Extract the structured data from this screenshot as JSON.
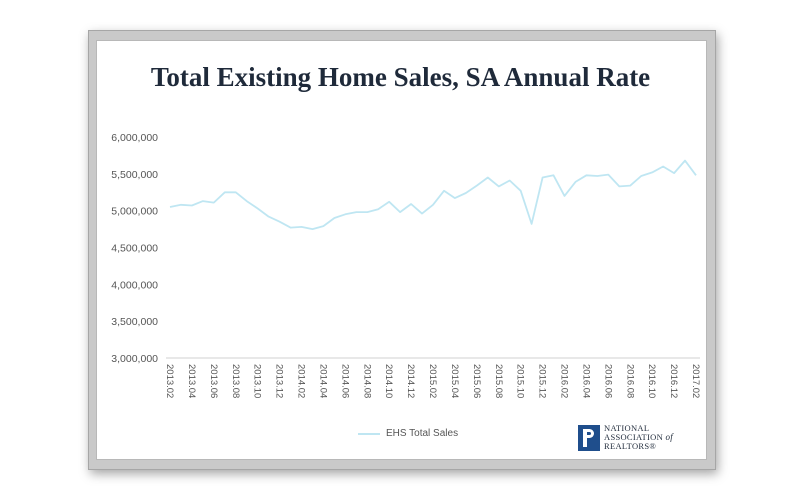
{
  "chart_data": {
    "type": "line",
    "title": "Total Existing Home Sales, SA Annual Rate",
    "ylim": [
      3000000,
      6000000
    ],
    "yticks": [
      3000000,
      3500000,
      4000000,
      4500000,
      5000000,
      5500000,
      6000000
    ],
    "ytick_labels": [
      "3,000,000",
      "3,500,000",
      "4,000,000",
      "4,500,000",
      "5,000,000",
      "5,500,000",
      "6,000,000"
    ],
    "x_tick_labels": [
      "2013.02",
      "2013.04",
      "2013.06",
      "2013.08",
      "2013.10",
      "2013.12",
      "2014.02",
      "2014.04",
      "2014.06",
      "2014.08",
      "2014.10",
      "2014.12",
      "2015.02",
      "2015.04",
      "2015.06",
      "2015.08",
      "2015.10",
      "2015.12",
      "2016.02",
      "2016.04",
      "2016.06",
      "2016.08",
      "2016.10",
      "2016.12",
      "2017.02"
    ],
    "grid": false,
    "legend_position": "bottom",
    "series": [
      {
        "name": "EHS Total Sales",
        "color": "#bfe6f2",
        "values": [
          5050000,
          5080000,
          5070000,
          5130000,
          5110000,
          5250000,
          5250000,
          5130000,
          5030000,
          4920000,
          4850000,
          4770000,
          4780000,
          4750000,
          4790000,
          4900000,
          4950000,
          4980000,
          4980000,
          5020000,
          5120000,
          4980000,
          5090000,
          4960000,
          5080000,
          5270000,
          5170000,
          5240000,
          5340000,
          5450000,
          5330000,
          5410000,
          5270000,
          4820000,
          5450000,
          5480000,
          5200000,
          5390000,
          5480000,
          5470000,
          5490000,
          5330000,
          5340000,
          5470000,
          5520000,
          5600000,
          5510000,
          5680000,
          5480000
        ]
      }
    ]
  },
  "branding": {
    "logo_line1": "NATIONAL",
    "logo_line2": "ASSOCIATION",
    "logo_line2_suffix": "of",
    "logo_line3": "REALTORS®"
  }
}
